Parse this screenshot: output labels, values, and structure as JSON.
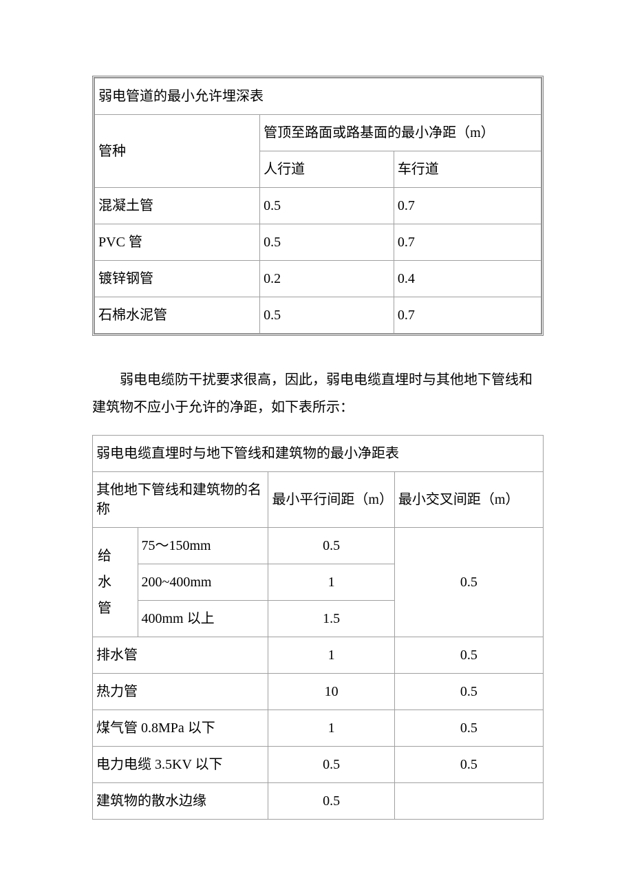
{
  "table1": {
    "title": "弱电管道的最小允许埋深表",
    "col1_header": "管种",
    "group_header": "管顶至路面或路基面的最小净距（m）",
    "sub_headers": [
      "人行道",
      "车行道"
    ],
    "rows": [
      {
        "name": "混凝土管",
        "v1": "0.5",
        "v2": "0.7"
      },
      {
        "name": "PVC 管",
        "v1": "0.5",
        "v2": "0.7"
      },
      {
        "name": "镀锌钢管",
        "v1": "0.2",
        "v2": "0.4"
      },
      {
        "name": "石棉水泥管",
        "v1": "0.5",
        "v2": "0.7"
      }
    ],
    "col_widths": [
      "37%",
      "30%",
      "33%"
    ]
  },
  "paragraph": "弱电电缆防干扰要求很高，因此，弱电电缆直埋时与其他地下管线和建筑物不应小于允许的净距，如下表所示：",
  "table2": {
    "title": "弱电电缆直埋时与地下管线和建筑物的最小净距表",
    "header_name": "其他地下管线和建筑物的名称",
    "header_parallel": "最小平行间距（m）",
    "header_cross": "最小交叉间距（m）",
    "water_group_label": "给水管",
    "water_rows": [
      {
        "size": "75～150mm",
        "parallel": "0.5"
      },
      {
        "size": "200~400mm",
        "parallel": "1"
      },
      {
        "size": "400mm 以上",
        "parallel": "1.5"
      }
    ],
    "water_cross": "0.5",
    "rows": [
      {
        "name": "排水管",
        "parallel": "1",
        "cross": "0.5"
      },
      {
        "name": "热力管",
        "parallel": "10",
        "cross": "0.5"
      },
      {
        "name": "煤气管 0.8MPa 以下",
        "parallel": "1",
        "cross": "0.5"
      },
      {
        "name": "电力电缆 3.5KV 以下",
        "parallel": "0.5",
        "cross": "0.5"
      },
      {
        "name": "建筑物的散水边缘",
        "parallel": "0.5",
        "cross": ""
      }
    ],
    "col_widths": [
      "10%",
      "29%",
      "28%",
      "33%"
    ]
  },
  "style": {
    "background_color": "#ffffff",
    "text_color": "#000000",
    "border_color": "#a0a0a0",
    "outer_border_color": "#808080",
    "font_family": "SimSun",
    "base_fontsize": 20
  }
}
